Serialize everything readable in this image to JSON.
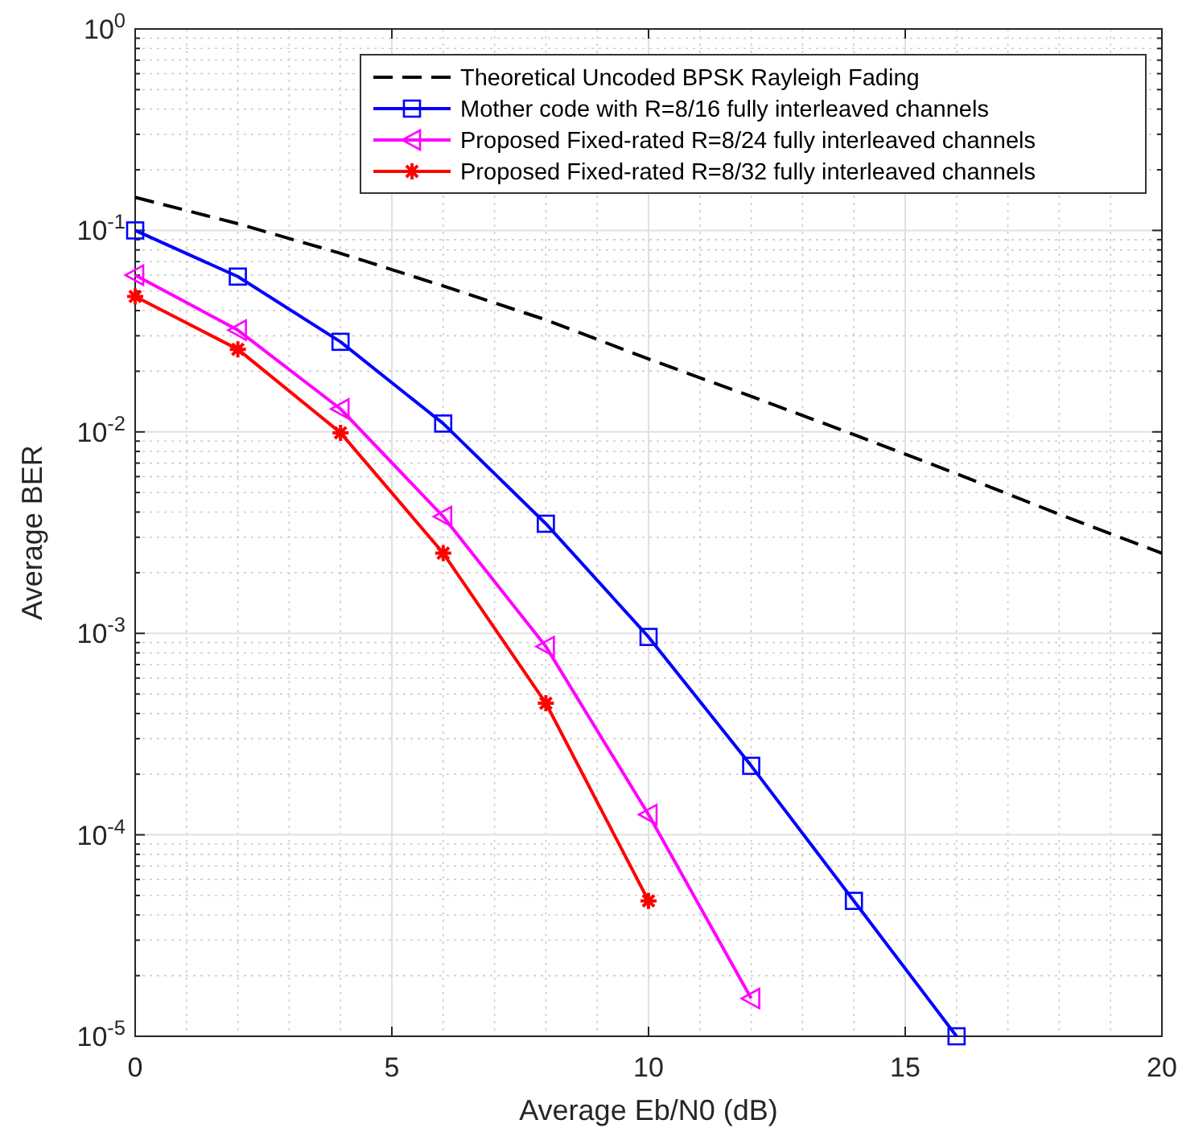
{
  "chart_data": {
    "type": "line",
    "xlabel": "Average Eb/N0 (dB)",
    "ylabel": "Average BER",
    "xlim": [
      0,
      20
    ],
    "xticks": [
      0,
      5,
      10,
      15,
      20
    ],
    "ylim": [
      1e-05,
      1
    ],
    "yticks": [
      {
        "value": 1,
        "label": "10$^{0}$"
      },
      {
        "value": 0.1,
        "label": "10$^{-1}$"
      },
      {
        "value": 0.01,
        "label": "10$^{-2}$"
      },
      {
        "value": 0.001,
        "label": "10$^{-3}$"
      },
      {
        "value": 0.0001,
        "label": "10$^{-4}$"
      },
      {
        "value": 1e-05,
        "label": "10$^{-5}$"
      }
    ],
    "log": "y",
    "grid": true,
    "legend": "top right",
    "series": [
      {
        "name": "Theoretical Uncoded BPSK Rayleigh Fading",
        "color": "#000000",
        "line_style": "dashed",
        "marker": "none",
        "x": [
          0,
          2,
          4,
          6,
          8,
          10,
          12,
          14,
          16,
          18,
          20
        ],
        "values": [
          0.146,
          0.108,
          0.077,
          0.053,
          0.036,
          0.023,
          0.015,
          0.0097,
          0.0062,
          0.0039,
          0.0025
        ]
      },
      {
        "name": "Mother code with R=8/16 fully interleaved channels",
        "color": "#0000ff",
        "line_style": "solid",
        "marker": "square",
        "x": [
          0,
          2,
          4,
          6,
          8,
          10,
          12,
          14,
          16
        ],
        "values": [
          0.1,
          0.059,
          0.028,
          0.011,
          0.0035,
          0.00096,
          0.00022,
          4.7e-05,
          1e-05
        ]
      },
      {
        "name": "Proposed Fixed-rated R=8/24 fully interleaved channels",
        "color": "#ff00ff",
        "line_style": "solid",
        "marker": "triangle",
        "x": [
          0,
          2,
          4,
          6,
          8,
          10,
          12
        ],
        "values": [
          0.06,
          0.032,
          0.013,
          0.0038,
          0.00086,
          0.000126,
          1.54e-05
        ]
      },
      {
        "name": "Proposed Fixed-rated R=8/32 fully interleaved channels",
        "color": "#ff0000",
        "line_style": "solid",
        "marker": "cross",
        "x": [
          0,
          2,
          4,
          6,
          8,
          10
        ],
        "values": [
          0.047,
          0.0257,
          0.0099,
          0.0025,
          0.00045,
          4.7e-05
        ]
      }
    ]
  }
}
